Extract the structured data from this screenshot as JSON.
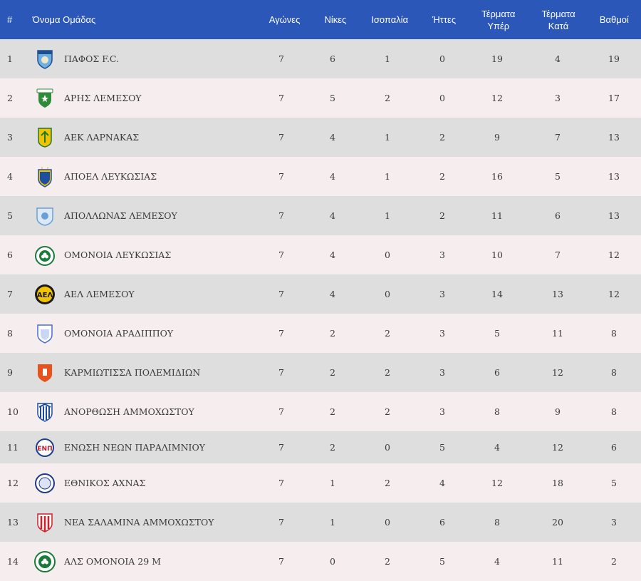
{
  "header": {
    "rank": "#",
    "team": "Όνομα Ομάδας",
    "games": "Αγώνες",
    "wins": "Νίκες",
    "draws": "Ισοπαλία",
    "losses": "Ήττες",
    "goals_for_1": "Τέρματα",
    "goals_for_2": "Υπέρ",
    "goals_against_1": "Τέρματα",
    "goals_against_2": "Κατά",
    "points": "Βαθμοί"
  },
  "rows": [
    {
      "rank": "1",
      "team": "ΠΑΦΟΣ F.C.",
      "games": "7",
      "wins": "6",
      "draws": "1",
      "losses": "0",
      "gf": "19",
      "ga": "4",
      "pts": "19",
      "logo": "pafos-fc-logo"
    },
    {
      "rank": "2",
      "team": "ΑΡΗΣ ΛΕΜΕΣΟΥ",
      "games": "7",
      "wins": "5",
      "draws": "2",
      "losses": "0",
      "gf": "12",
      "ga": "3",
      "pts": "17",
      "logo": "aris-limassol-logo"
    },
    {
      "rank": "3",
      "team": "ΑΕΚ ΛΑΡΝΑΚΑΣ",
      "games": "7",
      "wins": "4",
      "draws": "1",
      "losses": "2",
      "gf": "9",
      "ga": "7",
      "pts": "13",
      "logo": "aek-larnaca-logo"
    },
    {
      "rank": "4",
      "team": "ΑΠΟΕΛ ΛΕΥΚΩΣΙΑΣ",
      "games": "7",
      "wins": "4",
      "draws": "1",
      "losses": "2",
      "gf": "16",
      "ga": "5",
      "pts": "13",
      "logo": "apoel-logo"
    },
    {
      "rank": "5",
      "team": "ΑΠΟΛΛΩΝΑΣ ΛΕΜΕΣΟΥ",
      "games": "7",
      "wins": "4",
      "draws": "1",
      "losses": "2",
      "gf": "11",
      "ga": "6",
      "pts": "13",
      "logo": "apollon-logo"
    },
    {
      "rank": "6",
      "team": "ΟΜΟΝΟΙΑ ΛΕΥΚΩΣΙΑΣ",
      "games": "7",
      "wins": "4",
      "draws": "0",
      "losses": "3",
      "gf": "10",
      "ga": "7",
      "pts": "12",
      "logo": "omonoia-logo"
    },
    {
      "rank": "7",
      "team": "ΑΕΛ ΛΕΜΕΣΟΥ",
      "games": "7",
      "wins": "4",
      "draws": "0",
      "losses": "3",
      "gf": "14",
      "ga": "13",
      "pts": "12",
      "logo": "ael-logo"
    },
    {
      "rank": "8",
      "team": "ΟΜΟΝΟΙΑ ΑΡΑΔΙΠΠΟΥ",
      "games": "7",
      "wins": "2",
      "draws": "2",
      "losses": "3",
      "gf": "5",
      "ga": "11",
      "pts": "8",
      "logo": "omonoia-aradippou-logo"
    },
    {
      "rank": "9",
      "team": "ΚΑΡΜΙΩΤΙΣΣΑ ΠΟΛΕΜΙΔΙΩΝ",
      "games": "7",
      "wins": "2",
      "draws": "2",
      "losses": "3",
      "gf": "6",
      "ga": "12",
      "pts": "8",
      "logo": "karmiotissa-logo"
    },
    {
      "rank": "10",
      "team": "ΑΝΟΡΘΩΣΗ ΑΜΜΟΧΩΣΤΟΥ",
      "games": "7",
      "wins": "2",
      "draws": "2",
      "losses": "3",
      "gf": "8",
      "ga": "9",
      "pts": "8",
      "logo": "anorthosis-logo"
    },
    {
      "rank": "11",
      "team": "ΕΝΩΣΗ ΝΕΩΝ ΠΑΡΑΛΙΜΝΙΟΥ",
      "games": "7",
      "wins": "2",
      "draws": "0",
      "losses": "5",
      "gf": "4",
      "ga": "12",
      "pts": "6",
      "logo": "enp-logo"
    },
    {
      "rank": "12",
      "team": "ΕΘΝΙΚΟΣ ΑΧΝΑΣ",
      "games": "7",
      "wins": "1",
      "draws": "2",
      "losses": "4",
      "gf": "12",
      "ga": "18",
      "pts": "5",
      "logo": "ethnikos-achnas-logo"
    },
    {
      "rank": "13",
      "team": "ΝΕΑ ΣΑΛΑΜΙΝΑ ΑΜΜΟΧΩΣΤΟΥ",
      "games": "7",
      "wins": "1",
      "draws": "0",
      "losses": "6",
      "gf": "8",
      "ga": "20",
      "pts": "3",
      "logo": "nea-salamina-logo"
    },
    {
      "rank": "14",
      "team": "ΑΛΣ ΟΜΟΝΟΙΑ 29 Μ",
      "games": "7",
      "wins": "0",
      "draws": "2",
      "losses": "5",
      "gf": "4",
      "ga": "11",
      "pts": "2",
      "logo": "als-omonoia-logo"
    }
  ],
  "colors": {
    "header_bg": "#2b57b8",
    "row_odd": "#dedede",
    "row_even": "#f6eeee"
  }
}
